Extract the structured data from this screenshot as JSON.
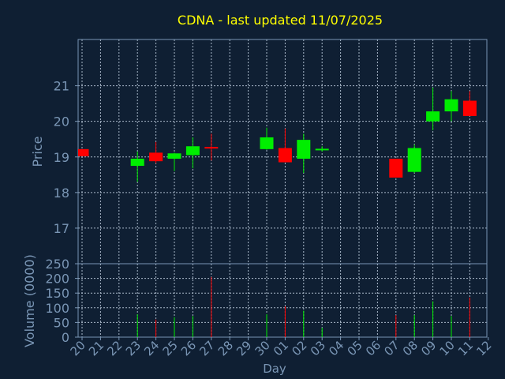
{
  "chart_data": {
    "type": "candlestick",
    "title": "CDNA - last updated 11/07/2025",
    "xlabel": "Day",
    "price_panel": {
      "ylabel": "Price",
      "ylim": [
        16,
        22.3
      ],
      "yticks": [
        17,
        18,
        19,
        20,
        21
      ]
    },
    "volume_panel": {
      "ylabel": "Volume (0000)",
      "ylim": [
        0,
        250
      ],
      "yticks": [
        0,
        50,
        100,
        150,
        200,
        250
      ]
    },
    "x_ticks": [
      "20",
      "21",
      "22",
      "23",
      "24",
      "25",
      "26",
      "27",
      "28",
      "29",
      "30",
      "01",
      "02",
      "03",
      "04",
      "05",
      "06",
      "07",
      "08",
      "09",
      "10",
      "11",
      "12"
    ],
    "candles": [
      {
        "day": "20",
        "idx": 0,
        "open": 19.22,
        "close": 19.02,
        "high": 19.22,
        "low": 19.02,
        "volume": 0
      },
      {
        "day": "23",
        "idx": 3,
        "open": 18.75,
        "close": 18.95,
        "high": 19.15,
        "low": 18.3,
        "volume": 78
      },
      {
        "day": "24",
        "idx": 4,
        "open": 19.12,
        "close": 18.88,
        "high": 19.42,
        "low": 18.82,
        "volume": 60
      },
      {
        "day": "25",
        "idx": 5,
        "open": 18.95,
        "close": 19.1,
        "high": 19.12,
        "low": 18.6,
        "volume": 68
      },
      {
        "day": "26",
        "idx": 6,
        "open": 19.05,
        "close": 19.3,
        "high": 19.55,
        "low": 18.68,
        "volume": 72
      },
      {
        "day": "27",
        "idx": 7,
        "open": 19.28,
        "close": 19.25,
        "high": 19.65,
        "low": 18.9,
        "volume": 205
      },
      {
        "day": "30",
        "idx": 10,
        "open": 19.22,
        "close": 19.55,
        "high": 19.82,
        "low": 19.2,
        "volume": 78
      },
      {
        "day": "01",
        "idx": 11,
        "open": 19.25,
        "close": 18.85,
        "high": 19.8,
        "low": 18.85,
        "volume": 105
      },
      {
        "day": "02",
        "idx": 12,
        "open": 18.95,
        "close": 19.48,
        "high": 19.65,
        "low": 18.55,
        "volume": 90
      },
      {
        "day": "03",
        "idx": 13,
        "open": 19.2,
        "close": 19.23,
        "high": 19.3,
        "low": 19.15,
        "volume": 32
      },
      {
        "day": "07",
        "idx": 17,
        "open": 18.95,
        "close": 18.42,
        "high": 18.95,
        "low": 18.42,
        "volume": 75
      },
      {
        "day": "08",
        "idx": 18,
        "open": 18.58,
        "close": 19.25,
        "high": 19.35,
        "low": 18.55,
        "volume": 75
      },
      {
        "day": "09",
        "idx": 19,
        "open": 20.0,
        "close": 20.28,
        "high": 20.95,
        "low": 19.75,
        "volume": 122
      },
      {
        "day": "10",
        "idx": 20,
        "open": 20.28,
        "close": 20.62,
        "high": 20.85,
        "low": 20.0,
        "volume": 72
      },
      {
        "day": "11",
        "idx": 21,
        "open": 20.58,
        "close": 20.15,
        "high": 20.85,
        "low": 20.15,
        "volume": 135
      }
    ],
    "colors": {
      "background": "#0f1f33",
      "up": "#00ee00",
      "down": "#ff0000",
      "axis": "#7a96b5",
      "grid": "#a9b8c9",
      "title": "#ffff00",
      "text": "#7a96b5"
    }
  }
}
